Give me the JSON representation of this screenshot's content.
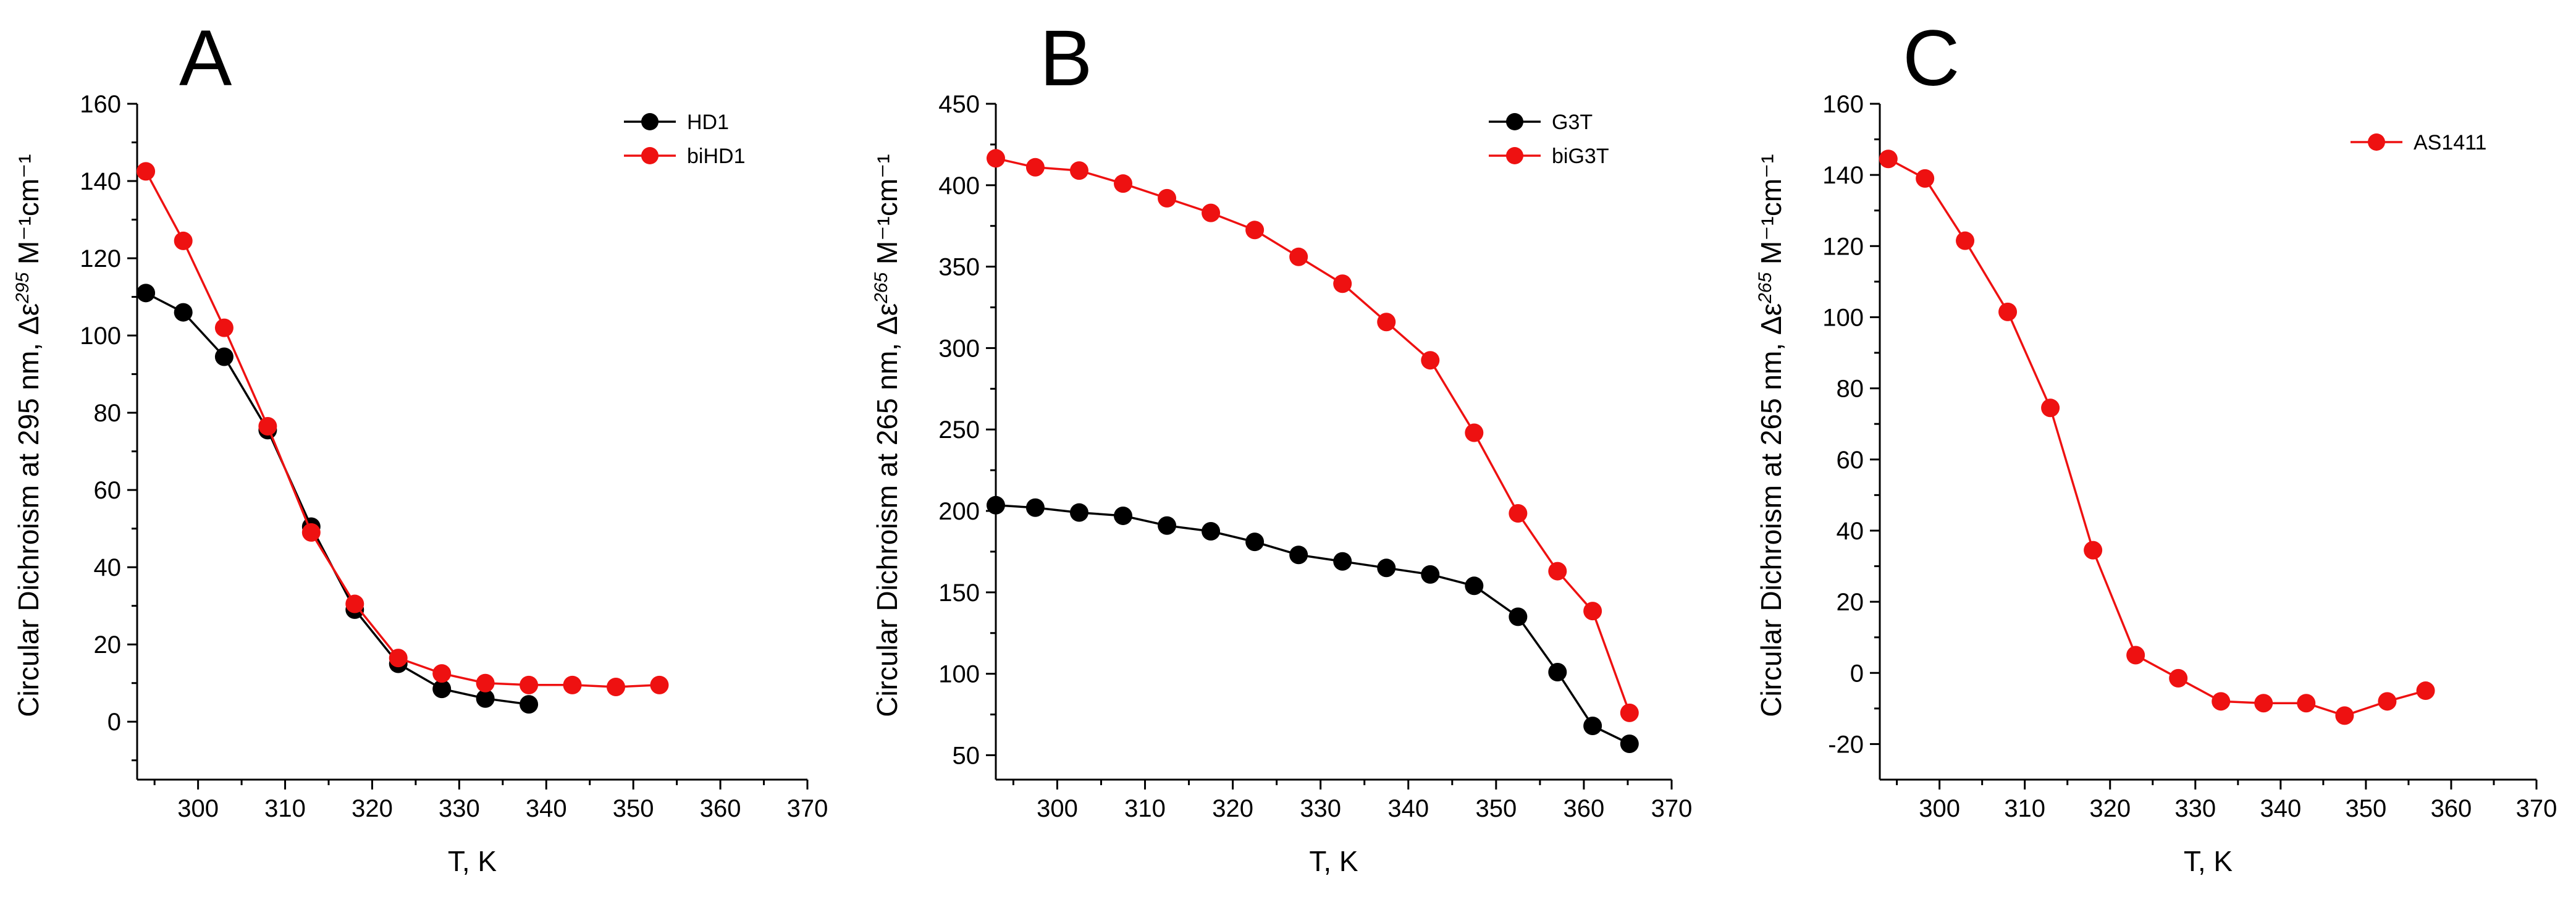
{
  "figure": {
    "chart_data": [
      {
        "type": "line",
        "panel_label": "A",
        "xlabel": "T, K",
        "ylabel_main": "Circular Dichroism at 295 nm, Δε",
        "ylabel_superscript": "295",
        "ylabel_units": " M⁻¹cm⁻¹",
        "xlim": [
          293,
          370
        ],
        "ylim": [
          -15,
          160
        ],
        "xticks": [
          300,
          310,
          320,
          330,
          340,
          350,
          360,
          370
        ],
        "yticks": [
          0,
          20,
          40,
          60,
          80,
          100,
          120,
          140,
          160
        ],
        "legend_position": "top-right",
        "series": [
          {
            "name": "HD1",
            "color": "#000000",
            "x": [
              294,
              298.3,
              303,
              308,
              313,
              318,
              323,
              328,
              333,
              338
            ],
            "y": [
              111,
              106,
              94.5,
              75.5,
              50.5,
              29,
              15,
              8.5,
              6,
              4.5
            ]
          },
          {
            "name": "biHD1",
            "color": "#ee1111",
            "x": [
              294,
              298.3,
              303,
              308,
              313,
              318,
              323,
              328,
              333,
              338,
              343,
              348,
              353
            ],
            "y": [
              142.5,
              124.5,
              102,
              76.5,
              49,
              30.5,
              16.5,
              12.5,
              10,
              9.5,
              9.5,
              9,
              9.5
            ]
          }
        ]
      },
      {
        "type": "line",
        "panel_label": "B",
        "xlabel": "T, K",
        "ylabel_main": "Circular Dichroism at 265 nm, Δε",
        "ylabel_superscript": "265",
        "ylabel_units": " M⁻¹cm⁻¹",
        "xlim": [
          293,
          370
        ],
        "ylim": [
          35,
          450
        ],
        "xticks": [
          300,
          310,
          320,
          330,
          340,
          350,
          360,
          370
        ],
        "yticks": [
          50,
          100,
          150,
          200,
          250,
          300,
          350,
          400,
          450
        ],
        "legend_position": "top-right",
        "series": [
          {
            "name": "G3T",
            "color": "#000000",
            "x": [
              293,
              297.5,
              302.5,
              307.5,
              312.5,
              317.5,
              322.5,
              327.5,
              332.5,
              337.5,
              342.5,
              347.5,
              352.5,
              357,
              361,
              365.2
            ],
            "y": [
              203.5,
              202,
              199,
              197,
              191,
              187.5,
              181,
              173,
              169,
              165,
              161,
              154,
              135,
              101,
              68,
              57
            ]
          },
          {
            "name": "biG3T",
            "color": "#ee1111",
            "x": [
              293,
              297.5,
              302.5,
              307.5,
              312.5,
              317.5,
              322.5,
              327.5,
              332.5,
              337.5,
              342.5,
              347.5,
              352.5,
              357,
              361,
              365.2
            ],
            "y": [
              416.5,
              411,
              409,
              401,
              392,
              383,
              372.5,
              356,
              339.5,
              316,
              292.5,
              248,
              198.5,
              163,
              138.5,
              76
            ]
          }
        ]
      },
      {
        "type": "line",
        "panel_label": "C",
        "xlabel": "T, K",
        "ylabel_main": "Circular Dichroism at 265 nm, Δε",
        "ylabel_superscript": "265",
        "ylabel_units": " M⁻¹cm⁻¹",
        "xlim": [
          293,
          370
        ],
        "ylim": [
          -30,
          160
        ],
        "xticks": [
          300,
          310,
          320,
          330,
          340,
          350,
          360,
          370
        ],
        "yticks": [
          -20,
          0,
          20,
          40,
          60,
          80,
          100,
          120,
          140,
          160
        ],
        "legend_position": "top-right",
        "series": [
          {
            "name": "AS1411",
            "color": "#ee1111",
            "x": [
              294,
              298.3,
              303,
              308,
              313,
              318,
              323,
              328,
              333,
              338,
              343,
              347.5,
              352.5,
              357
            ],
            "y": [
              144.5,
              139,
              121.5,
              101.5,
              74.5,
              34.5,
              5,
              -1.5,
              -8,
              -8.5,
              -8.5,
              -12,
              -8,
              -5
            ]
          }
        ]
      }
    ]
  }
}
